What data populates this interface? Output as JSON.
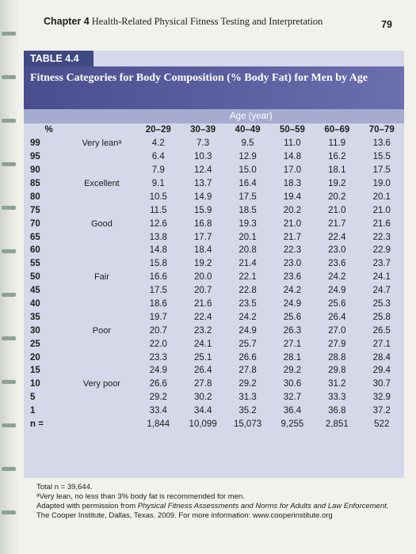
{
  "running_head": {
    "chapter": "Chapter 4",
    "title": "Health-Related Physical Fitness Testing and Interpretation",
    "page": "79"
  },
  "table": {
    "tag": "TABLE 4.4",
    "title": "Fitness Categories for Body Composition (% Body Fat) for Men by Age",
    "age_label": "Age (year)",
    "percentile_header": "%",
    "age_groups": [
      "20–29",
      "30–39",
      "40–49",
      "50–59",
      "60–69",
      "70–79"
    ],
    "rows": [
      {
        "pct": "99",
        "cat": "Very leanᵃ",
        "vals": [
          "4.2",
          "7.3",
          "9.5",
          "11.0",
          "11.9",
          "13.6"
        ]
      },
      {
        "pct": "95",
        "cat": "",
        "vals": [
          "6.4",
          "10.3",
          "12.9",
          "14.8",
          "16.2",
          "15.5"
        ]
      },
      {
        "pct": "90",
        "cat": "",
        "vals": [
          "7.9",
          "12.4",
          "15.0",
          "17.0",
          "18.1",
          "17.5"
        ]
      },
      {
        "pct": "85",
        "cat": "Excellent",
        "vals": [
          "9.1",
          "13.7",
          "16.4",
          "18.3",
          "19.2",
          "19.0"
        ]
      },
      {
        "pct": "80",
        "cat": "",
        "vals": [
          "10.5",
          "14.9",
          "17.5",
          "19.4",
          "20.2",
          "20.1"
        ]
      },
      {
        "pct": "75",
        "cat": "",
        "vals": [
          "11.5",
          "15.9",
          "18.5",
          "20.2",
          "21.0",
          "21.0"
        ]
      },
      {
        "pct": "70",
        "cat": "Good",
        "vals": [
          "12.6",
          "16.8",
          "19.3",
          "21.0",
          "21.7",
          "21.6"
        ]
      },
      {
        "pct": "65",
        "cat": "",
        "vals": [
          "13.8",
          "17.7",
          "20.1",
          "21.7",
          "22.4",
          "22.3"
        ]
      },
      {
        "pct": "60",
        "cat": "",
        "vals": [
          "14.8",
          "18.4",
          "20.8",
          "22.3",
          "23.0",
          "22.9"
        ]
      },
      {
        "pct": "55",
        "cat": "",
        "vals": [
          "15.8",
          "19.2",
          "21.4",
          "23.0",
          "23.6",
          "23.7"
        ]
      },
      {
        "pct": "50",
        "cat": "Fair",
        "vals": [
          "16.6",
          "20.0",
          "22.1",
          "23.6",
          "24.2",
          "24.1"
        ]
      },
      {
        "pct": "45",
        "cat": "",
        "vals": [
          "17.5",
          "20.7",
          "22.8",
          "24.2",
          "24.9",
          "24.7"
        ]
      },
      {
        "pct": "40",
        "cat": "",
        "vals": [
          "18.6",
          "21.6",
          "23.5",
          "24.9",
          "25.6",
          "25.3"
        ]
      },
      {
        "pct": "35",
        "cat": "",
        "vals": [
          "19.7",
          "22.4",
          "24.2",
          "25.6",
          "26.4",
          "25.8"
        ]
      },
      {
        "pct": "30",
        "cat": "Poor",
        "vals": [
          "20.7",
          "23.2",
          "24.9",
          "26.3",
          "27.0",
          "26.5"
        ]
      },
      {
        "pct": "25",
        "cat": "",
        "vals": [
          "22.0",
          "24.1",
          "25.7",
          "27.1",
          "27.9",
          "27.1"
        ]
      },
      {
        "pct": "20",
        "cat": "",
        "vals": [
          "23.3",
          "25.1",
          "26.6",
          "28.1",
          "28.8",
          "28.4"
        ]
      },
      {
        "pct": "15",
        "cat": "",
        "vals": [
          "24.9",
          "26.4",
          "27.8",
          "29.2",
          "29.8",
          "29.4"
        ]
      },
      {
        "pct": "10",
        "cat": "Very poor",
        "vals": [
          "26.6",
          "27.8",
          "29.2",
          "30.6",
          "31.2",
          "30.7"
        ]
      },
      {
        "pct": "5",
        "cat": "",
        "vals": [
          "29.2",
          "30.2",
          "31.3",
          "32.7",
          "33.3",
          "32.9"
        ]
      },
      {
        "pct": "1",
        "cat": "",
        "vals": [
          "33.4",
          "34.4",
          "35.2",
          "36.4",
          "36.8",
          "37.2"
        ]
      },
      {
        "pct": "n =",
        "cat": "",
        "vals": [
          "1,844",
          "10,099",
          "15,073",
          "9,255",
          "2,851",
          "522"
        ]
      }
    ]
  },
  "footnotes": {
    "total": "Total n = 39,644.",
    "note_a": "ᵃVery lean, no less than 3% body fat is recommended for men.",
    "source_prefix": "Adapted with permission from ",
    "source_title": "Physical Fitness Assessments and Norms for Adults and Law Enforcement.",
    "source_suffix": "The Cooper Institute, Dallas, Texas. 2009. For more information: www.cooperinstitute.org"
  },
  "colors": {
    "tag_bg": "#3f4a82",
    "title_bg": "#4a4d8e",
    "age_header_bg": "#a5acd0",
    "table_bg": "#d4d8e8",
    "page_bg": "#f3f1ec"
  }
}
